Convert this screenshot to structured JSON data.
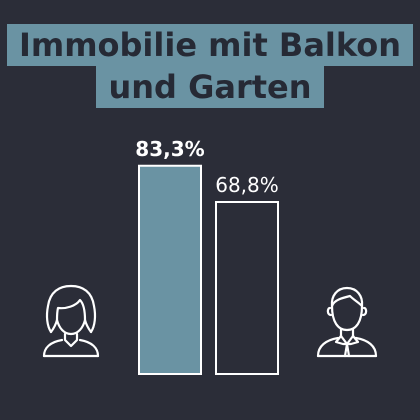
{
  "title": [
    "Immobilie mit Balkon",
    "und Garten"
  ],
  "colors": {
    "background": "#2b2d38",
    "accent": "#6a93a3",
    "outline": "#ffffff"
  },
  "icons": {
    "left": "woman-icon",
    "right": "man-icon"
  },
  "chart_data": {
    "type": "bar",
    "title": "Immobilie mit Balkon und Garten",
    "categories": [
      "Frauen",
      "Männer"
    ],
    "values": [
      83.3,
      68.8
    ],
    "value_labels": [
      "83,3%",
      "68,8%"
    ],
    "ylim": [
      0,
      100
    ],
    "grid": false,
    "legend": "none",
    "styles": [
      "filled",
      "outlined"
    ]
  }
}
